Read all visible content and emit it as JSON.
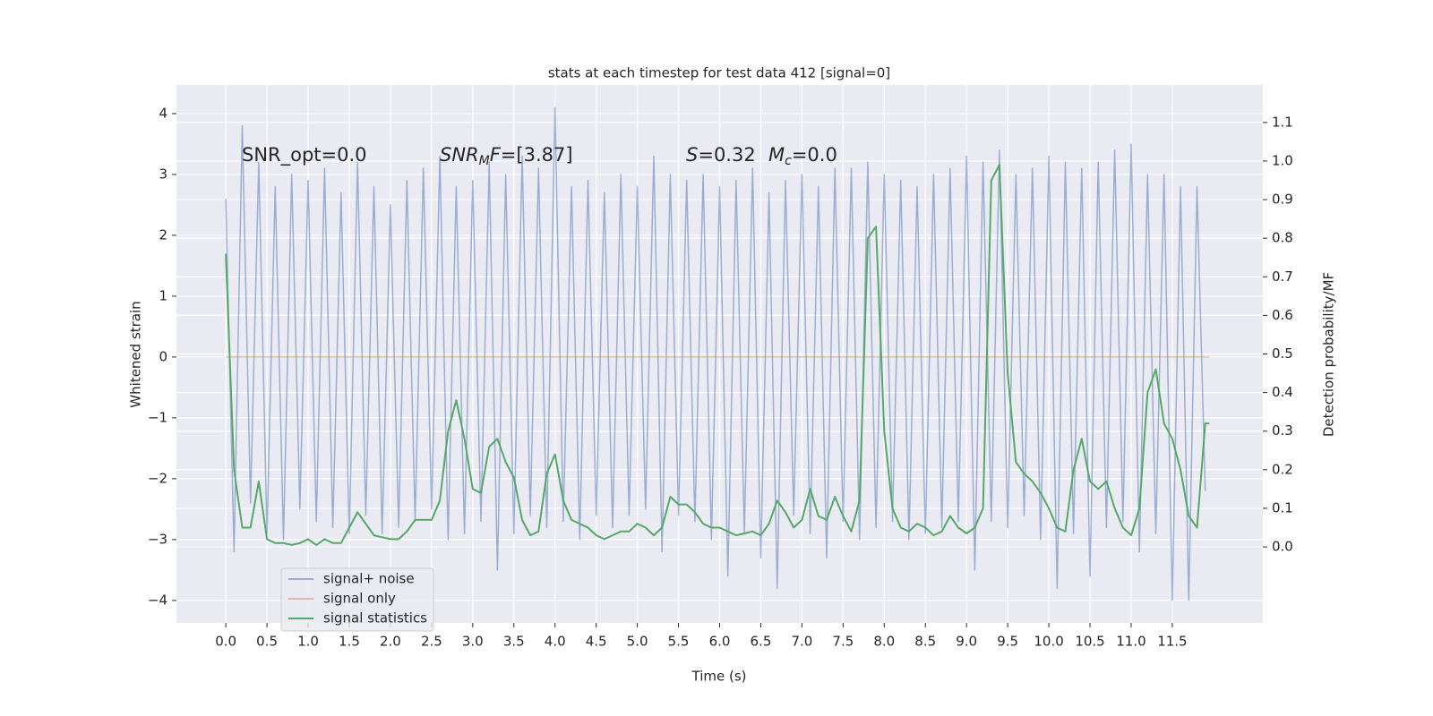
{
  "chart_data": {
    "type": "line",
    "title": "stats at each timestep for test data 412 [signal=0]",
    "xlabel": "Time (s)",
    "ylabel": "Whitened strain",
    "y2label": "Detection probability/MF",
    "xlim": [
      -0.6,
      12.6
    ],
    "ylim": [
      -4.37,
      4.47
    ],
    "y2lim": [
      -0.197,
      1.197
    ],
    "xticks": [
      {
        "value": 0,
        "label": "0.0"
      },
      {
        "value": 0.5,
        "label": "0.5"
      },
      {
        "value": 1,
        "label": "1.0"
      },
      {
        "value": 1.5,
        "label": "1.5"
      },
      {
        "value": 2,
        "label": "2.0"
      },
      {
        "value": 2.5,
        "label": "2.5"
      },
      {
        "value": 3,
        "label": "3.0"
      },
      {
        "value": 3.5,
        "label": "3.5"
      },
      {
        "value": 4,
        "label": "4.0"
      },
      {
        "value": 4.5,
        "label": "4.5"
      },
      {
        "value": 5,
        "label": "5.0"
      },
      {
        "value": 5.5,
        "label": "5.5"
      },
      {
        "value": 6,
        "label": "6.0"
      },
      {
        "value": 6.5,
        "label": "6.5"
      },
      {
        "value": 7,
        "label": "7.0"
      },
      {
        "value": 7.5,
        "label": "7.5"
      },
      {
        "value": 8,
        "label": "8.0"
      },
      {
        "value": 8.5,
        "label": "8.5"
      },
      {
        "value": 9,
        "label": "9.0"
      },
      {
        "value": 9.5,
        "label": "9.5"
      },
      {
        "value": 10,
        "label": "10.0"
      },
      {
        "value": 10.5,
        "label": "10.5"
      },
      {
        "value": 11,
        "label": "11.0"
      },
      {
        "value": 11.5,
        "label": "11.5"
      }
    ],
    "yticks": [
      {
        "value": -4,
        "label": "−4"
      },
      {
        "value": -3,
        "label": "−3"
      },
      {
        "value": -2,
        "label": "−2"
      },
      {
        "value": -1,
        "label": "−1"
      },
      0,
      1,
      2,
      3,
      4
    ],
    "y2ticks": [
      {
        "value": 0,
        "label": "0.0"
      },
      {
        "value": 0.1,
        "label": "0.1"
      },
      {
        "value": 0.2,
        "label": "0.2"
      },
      {
        "value": 0.3,
        "label": "0.3"
      },
      {
        "value": 0.4,
        "label": "0.4"
      },
      {
        "value": 0.5,
        "label": "0.5"
      },
      {
        "value": 0.6,
        "label": "0.6"
      },
      {
        "value": 0.7,
        "label": "0.7"
      },
      {
        "value": 0.8,
        "label": "0.8"
      },
      {
        "value": 0.9,
        "label": "0.9"
      },
      {
        "value": 1,
        "label": "1.0"
      },
      {
        "value": 1.1,
        "label": "1.1"
      }
    ],
    "grid": true,
    "legend": "lower left",
    "annotations": [
      [
        {
          "text": "SNR_opt=0.0",
          "style": "normal"
        }
      ],
      [
        {
          "text": "SNR",
          "style": "italic"
        },
        {
          "text": "M",
          "style": "sub"
        },
        {
          "text": "F",
          "style": "italic"
        },
        {
          "text": "=[3.87]",
          "style": "normal"
        }
      ],
      [
        {
          "text": "S",
          "style": "italic"
        },
        {
          "text": "=0.32",
          "style": "normal"
        }
      ],
      [
        {
          "text": "M",
          "style": "italic"
        },
        {
          "text": "c",
          "style": "sub"
        },
        {
          "text": "=0.0",
          "style": "normal"
        }
      ]
    ],
    "series": [
      {
        "name": "signal+ noise",
        "color": "#4c72b0",
        "opacity": 0.5,
        "x": [
          0,
          0.1,
          0.2,
          0.3,
          0.4,
          0.5,
          0.6,
          0.7,
          0.8,
          0.9,
          1,
          1.1,
          1.2,
          1.3,
          1.4,
          1.5,
          1.6,
          1.7,
          1.8,
          1.9,
          2,
          2.1,
          2.2,
          2.3,
          2.4,
          2.5,
          2.6,
          2.7,
          2.8,
          2.9,
          3,
          3.1,
          3.2,
          3.3,
          3.4,
          3.5,
          3.6,
          3.7,
          3.8,
          3.9,
          4,
          4.1,
          4.2,
          4.3,
          4.4,
          4.5,
          4.6,
          4.7,
          4.8,
          4.9,
          5,
          5.1,
          5.2,
          5.3,
          5.4,
          5.5,
          5.6,
          5.7,
          5.8,
          5.9,
          6,
          6.1,
          6.2,
          6.3,
          6.4,
          6.5,
          6.6,
          6.7,
          6.8,
          6.9,
          7,
          7.1,
          7.2,
          7.3,
          7.4,
          7.5,
          7.6,
          7.7,
          7.8,
          7.9,
          8,
          8.1,
          8.2,
          8.3,
          8.4,
          8.5,
          8.6,
          8.7,
          8.8,
          8.9,
          9,
          9.1,
          9.2,
          9.3,
          9.4,
          9.5,
          9.6,
          9.7,
          9.8,
          9.9,
          10,
          10.1,
          10.2,
          10.3,
          10.4,
          10.5,
          10.6,
          10.7,
          10.8,
          10.9,
          11,
          11.1,
          11.2,
          11.3,
          11.4,
          11.5,
          11.6,
          11.7,
          11.8,
          11.9
        ],
        "values": [
          2.6,
          -3.2,
          3.8,
          -2.4,
          3.2,
          -2.9,
          2.8,
          -3.0,
          3.0,
          -2.5,
          2.9,
          -2.7,
          3.1,
          -2.8,
          2.7,
          -2.9,
          3.2,
          -2.6,
          2.8,
          -2.9,
          2.5,
          -2.8,
          2.9,
          -2.7,
          3.1,
          -2.5,
          3.3,
          -3.0,
          2.8,
          -2.9,
          2.9,
          -2.7,
          3.2,
          -3.5,
          3.0,
          -2.9,
          3.3,
          -2.6,
          3.1,
          -2.8,
          4.1,
          -2.7,
          2.8,
          -3.0,
          2.9,
          -2.6,
          2.7,
          -2.8,
          3.0,
          -2.6,
          2.8,
          -2.5,
          3.3,
          -3.2,
          3.0,
          -2.6,
          2.9,
          -2.7,
          3.0,
          -3.0,
          2.8,
          -3.6,
          2.9,
          -2.9,
          3.1,
          -3.3,
          2.7,
          -3.8,
          2.9,
          -2.6,
          3.0,
          -2.9,
          2.8,
          -3.3,
          3.1,
          -2.7,
          3.1,
          -3.0,
          3.2,
          -2.8,
          3.0,
          -2.7,
          2.9,
          -3.0,
          2.8,
          -2.9,
          3.0,
          -2.8,
          3.1,
          -2.7,
          3.3,
          -3.5,
          3.2,
          -2.7,
          3.4,
          -2.8,
          3.0,
          -2.6,
          3.1,
          -3.0,
          3.3,
          -3.8,
          3.2,
          -2.9,
          3.1,
          -3.6,
          3.2,
          -2.8,
          3.4,
          -2.7,
          3.5,
          -3.2,
          3.0,
          -2.9,
          3.0,
          -4.0,
          2.8,
          -4.0,
          2.8,
          -2.2
        ]
      },
      {
        "name": "signal only",
        "color": "#dd8452",
        "opacity": 0.5,
        "x": [
          0,
          11.95
        ],
        "values": [
          0,
          0
        ]
      },
      {
        "name": "signal statistics",
        "color": "#55a868",
        "opacity": 1,
        "axis": "y2",
        "x": [
          0,
          0.1,
          0.2,
          0.3,
          0.4,
          0.5,
          0.6,
          0.7,
          0.8,
          0.9,
          1,
          1.1,
          1.2,
          1.3,
          1.4,
          1.5,
          1.6,
          1.7,
          1.8,
          1.9,
          2,
          2.1,
          2.2,
          2.3,
          2.4,
          2.5,
          2.6,
          2.7,
          2.8,
          2.9,
          3,
          3.1,
          3.2,
          3.3,
          3.4,
          3.5,
          3.6,
          3.7,
          3.8,
          3.9,
          4,
          4.1,
          4.2,
          4.3,
          4.4,
          4.5,
          4.6,
          4.7,
          4.8,
          4.9,
          5,
          5.1,
          5.2,
          5.3,
          5.4,
          5.5,
          5.6,
          5.7,
          5.8,
          5.9,
          6,
          6.1,
          6.2,
          6.3,
          6.4,
          6.5,
          6.6,
          6.7,
          6.8,
          6.9,
          7,
          7.1,
          7.2,
          7.3,
          7.4,
          7.5,
          7.6,
          7.7,
          7.8,
          7.9,
          8,
          8.1,
          8.2,
          8.3,
          8.4,
          8.5,
          8.6,
          8.7,
          8.8,
          8.9,
          9,
          9.1,
          9.2,
          9.3,
          9.4,
          9.5,
          9.6,
          9.7,
          9.8,
          9.9,
          10,
          10.1,
          10.2,
          10.3,
          10.4,
          10.5,
          10.6,
          10.7,
          10.8,
          10.9,
          11,
          11.1,
          11.2,
          11.3,
          11.4,
          11.5,
          11.6,
          11.7,
          11.8,
          11.9,
          11.95
        ],
        "values": [
          0.76,
          0.2,
          0.05,
          0.05,
          0.17,
          0.02,
          0.01,
          0.01,
          0.005,
          0.01,
          0.02,
          0.005,
          0.02,
          0.01,
          0.01,
          0.05,
          0.09,
          0.06,
          0.03,
          0.025,
          0.02,
          0.02,
          0.04,
          0.07,
          0.07,
          0.07,
          0.12,
          0.3,
          0.38,
          0.28,
          0.15,
          0.14,
          0.26,
          0.28,
          0.22,
          0.18,
          0.07,
          0.03,
          0.04,
          0.19,
          0.24,
          0.12,
          0.07,
          0.06,
          0.05,
          0.03,
          0.02,
          0.03,
          0.04,
          0.04,
          0.06,
          0.05,
          0.03,
          0.05,
          0.13,
          0.11,
          0.11,
          0.09,
          0.06,
          0.05,
          0.05,
          0.04,
          0.03,
          0.035,
          0.04,
          0.03,
          0.06,
          0.12,
          0.09,
          0.05,
          0.07,
          0.15,
          0.08,
          0.07,
          0.13,
          0.08,
          0.04,
          0.12,
          0.8,
          0.83,
          0.3,
          0.1,
          0.05,
          0.04,
          0.06,
          0.05,
          0.03,
          0.04,
          0.08,
          0.05,
          0.035,
          0.05,
          0.1,
          0.95,
          0.99,
          0.45,
          0.22,
          0.19,
          0.17,
          0.14,
          0.1,
          0.05,
          0.04,
          0.2,
          0.28,
          0.17,
          0.15,
          0.17,
          0.1,
          0.05,
          0.03,
          0.1,
          0.4,
          0.46,
          0.32,
          0.28,
          0.2,
          0.08,
          0.05,
          0.32,
          0.32
        ]
      }
    ]
  }
}
